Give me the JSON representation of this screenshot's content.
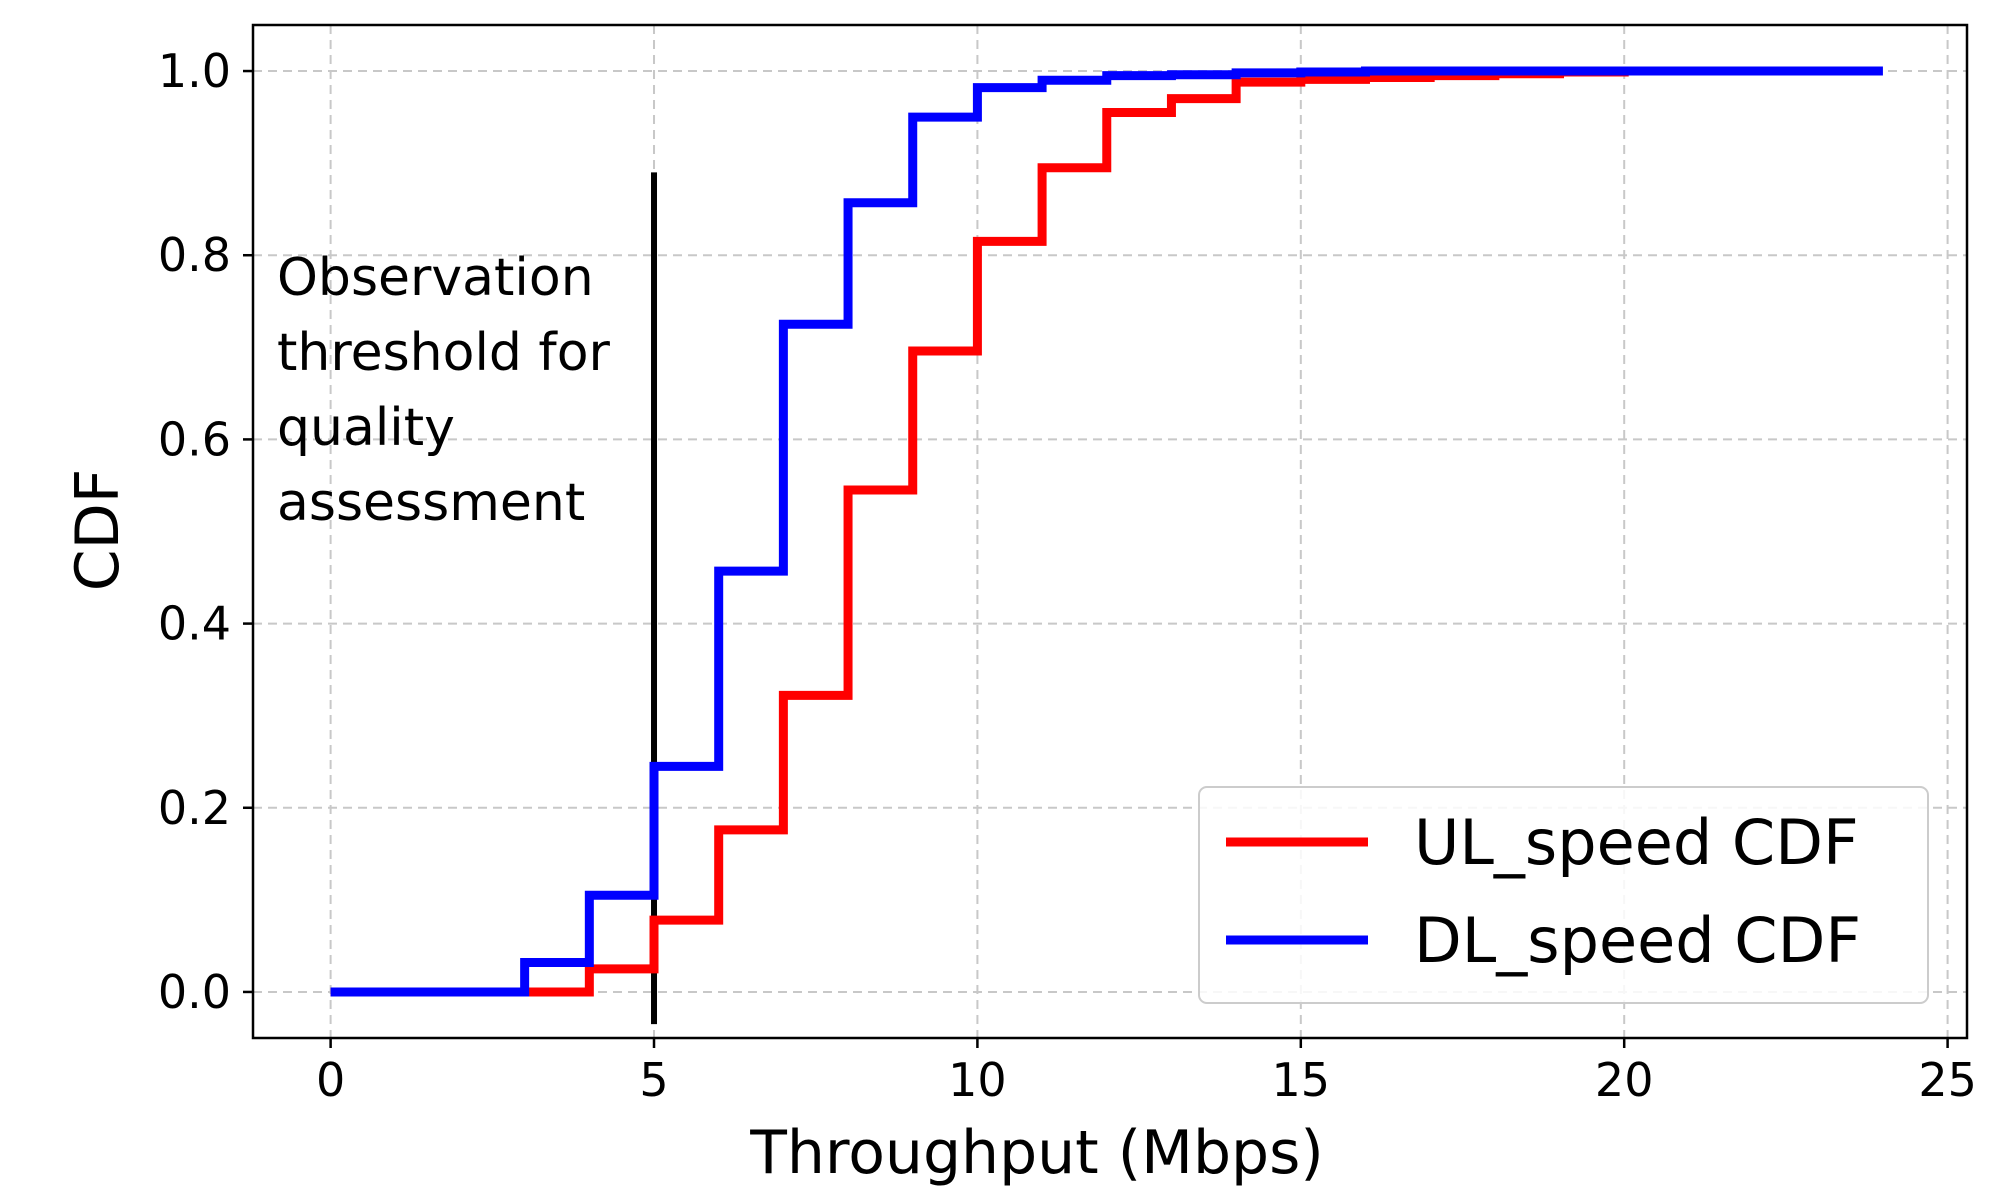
{
  "chart_data": {
    "type": "line",
    "step": true,
    "title": "",
    "xlabel": "Throughput (Mbps)",
    "ylabel": "CDF",
    "xlim": [
      -1.2,
      25.3
    ],
    "ylim": [
      -0.05,
      1.05
    ],
    "xticks": [
      0,
      5,
      10,
      15,
      20,
      25
    ],
    "yticks": [
      0.0,
      0.2,
      0.4,
      0.6,
      0.8,
      1.0
    ],
    "xtick_labels": [
      "0",
      "5",
      "10",
      "15",
      "20",
      "25"
    ],
    "ytick_labels": [
      "0.0",
      "0.2",
      "0.4",
      "0.6",
      "0.8",
      "1.0"
    ],
    "grid": true,
    "legend_position": "lower-right",
    "series": [
      {
        "name": "UL_speed CDF",
        "color": "#ff0000",
        "x": [
          0,
          3,
          4,
          5,
          6,
          7,
          8,
          9,
          10,
          11,
          12,
          13,
          14,
          15,
          16,
          17,
          18,
          19,
          20
        ],
        "y": [
          0.0,
          0.0,
          0.025,
          0.078,
          0.176,
          0.322,
          0.545,
          0.696,
          0.815,
          0.895,
          0.955,
          0.97,
          0.988,
          0.991,
          0.993,
          0.995,
          0.997,
          0.999,
          1.0
        ]
      },
      {
        "name": "DL_speed CDF",
        "color": "#0000ff",
        "x": [
          0,
          3,
          4,
          5,
          6,
          7,
          8,
          9,
          10,
          11,
          12,
          13,
          14,
          15,
          16,
          17,
          18,
          19,
          20,
          21,
          22,
          23,
          24
        ],
        "y": [
          0.0,
          0.032,
          0.105,
          0.245,
          0.457,
          0.725,
          0.857,
          0.95,
          0.982,
          0.99,
          0.995,
          0.996,
          0.998,
          0.999,
          1.0,
          1.0,
          1.0,
          1.0,
          1.0,
          1.0,
          1.0,
          1.0,
          1.0
        ]
      }
    ],
    "annotations": [
      {
        "type": "vline",
        "x": 5,
        "y_range": [
          -0.035,
          0.89
        ],
        "color": "#000000",
        "text_lines": [
          "Observation",
          "threshold for",
          "quality",
          "assessment"
        ]
      }
    ]
  }
}
